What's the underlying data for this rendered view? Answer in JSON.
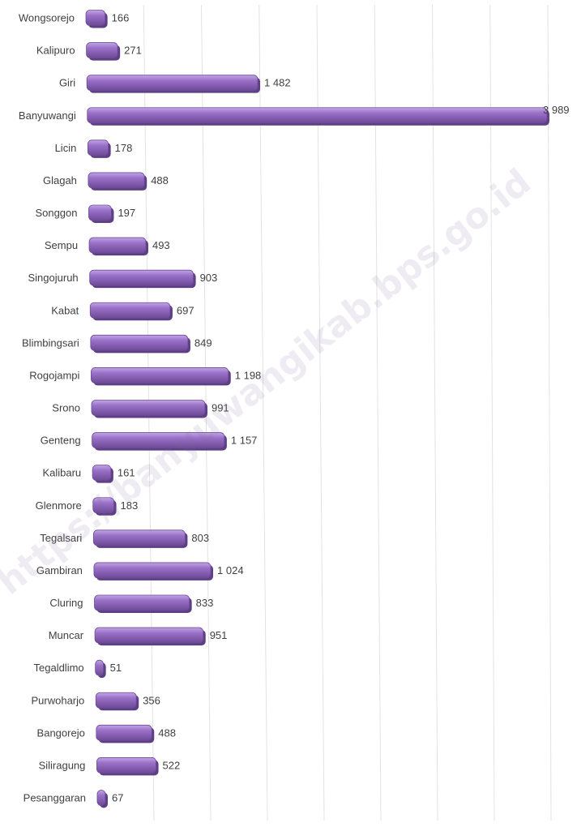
{
  "chart_data": {
    "type": "bar",
    "orientation": "horizontal",
    "categories": [
      "Wongsorejo",
      "Kalipuro",
      "Giri",
      "Banyuwangi",
      "Licin",
      "Glagah",
      "Songgon",
      "Sempu",
      "Singojuruh",
      "Kabat",
      "Blimbingsari",
      "Rogojampi",
      "Srono",
      "Genteng",
      "Kalibaru",
      "Glenmore",
      "Tegalsari",
      "Gambiran",
      "Cluring",
      "Muncar",
      "Tegaldlimo",
      "Purwoharjo",
      "Bangorejo",
      "Siliragung",
      "Pesanggaran"
    ],
    "values": [
      166,
      271,
      1482,
      3989,
      178,
      488,
      197,
      493,
      903,
      697,
      849,
      1198,
      991,
      1157,
      161,
      183,
      803,
      1024,
      833,
      951,
      51,
      356,
      488,
      522,
      67
    ],
    "value_labels": [
      "166",
      "271",
      "1 482",
      "3 989",
      "178",
      "488",
      "197",
      "493",
      "903",
      "697",
      "849",
      "1 198",
      "991",
      "1 157",
      "161",
      "183",
      "803",
      "1 024",
      "833",
      "951",
      "51",
      "356",
      "488",
      "522",
      "67"
    ],
    "xlim": [
      0,
      4000
    ],
    "grid": "vertical",
    "style": "3d-cylinder",
    "bar_color": "#9a70c8",
    "bar_top_color": "#c2a6e6",
    "bar_edge_color": "#6d4a96"
  },
  "watermark": "https://banyuwangikab.bps.go.id"
}
